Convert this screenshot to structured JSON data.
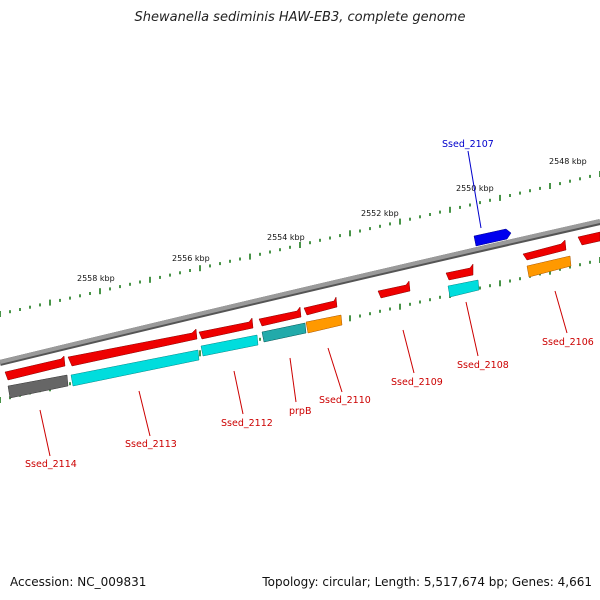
{
  "title": "Shewanella sediminis HAW-EB3, complete genome",
  "footer": {
    "accession": "Accession: NC_009831",
    "summary": "Topology: circular; Length: 5,517,674 bp; Genes: 4,661"
  },
  "scale_labels": [
    "2548 kbp",
    "2550 kbp",
    "2552 kbp",
    "2554 kbp",
    "2556 kbp",
    "2558 kbp"
  ],
  "gene_labels": [
    {
      "text": "Ssed_2107",
      "color": "#0000cc"
    },
    {
      "text": "Ssed_2106",
      "color": "#cc0000"
    },
    {
      "text": "Ssed_2108",
      "color": "#cc0000"
    },
    {
      "text": "Ssed_2109",
      "color": "#cc0000"
    },
    {
      "text": "Ssed_2110",
      "color": "#cc0000"
    },
    {
      "text": "prpB",
      "color": "#cc0000"
    },
    {
      "text": "Ssed_2112",
      "color": "#cc0000"
    },
    {
      "text": "Ssed_2113",
      "color": "#cc0000"
    },
    {
      "text": "Ssed_2114",
      "color": "#cc0000"
    }
  ],
  "colors": {
    "backbone": "#888888",
    "tick": "#1a7a1a",
    "forward_gene": "#0000ee",
    "reverse_gene": "#ee0000",
    "cyan": "#00dddd",
    "teal": "#22aaaa",
    "orange": "#ff9900",
    "gray": "#666666"
  }
}
